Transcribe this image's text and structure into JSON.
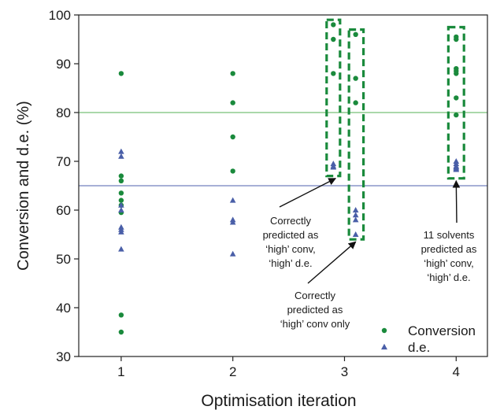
{
  "chart_data": {
    "type": "scatter",
    "xlabel": "Optimisation iteration",
    "ylabel": "Conversion and d.e. (%)",
    "xticks": [
      "1",
      "2",
      "3",
      "4"
    ],
    "yticks": [
      "30",
      "40",
      "50",
      "60",
      "70",
      "80",
      "90",
      "100"
    ],
    "xlim": [
      0.62,
      4.28
    ],
    "ylim": [
      30,
      100
    ],
    "grid": false,
    "legend_position": "bottom-right",
    "thresholds": [
      {
        "y": 80,
        "color": "#8ecc8e"
      },
      {
        "y": 65,
        "color": "#8a95c8"
      }
    ],
    "series": [
      {
        "name": "Conversion",
        "marker": "circle",
        "color": "#1a8a3c",
        "points": [
          [
            1,
            88
          ],
          [
            1,
            67
          ],
          [
            1,
            66
          ],
          [
            1,
            63.5
          ],
          [
            1,
            62
          ],
          [
            1,
            61
          ],
          [
            1,
            59.5
          ],
          [
            1,
            38.5
          ],
          [
            1,
            35
          ],
          [
            2,
            88
          ],
          [
            2,
            82
          ],
          [
            2,
            75
          ],
          [
            2,
            68
          ],
          [
            2.9,
            98
          ],
          [
            2.9,
            95
          ],
          [
            2.9,
            88
          ],
          [
            3.1,
            96
          ],
          [
            3.1,
            87
          ],
          [
            3.1,
            82
          ],
          [
            4,
            95.5
          ],
          [
            4,
            95
          ],
          [
            4,
            89
          ],
          [
            4,
            88.5
          ],
          [
            4,
            88
          ],
          [
            4,
            83
          ],
          [
            4,
            79.5
          ]
        ]
      },
      {
        "name": "d.e.",
        "marker": "triangle",
        "color": "#4a5fa8",
        "points": [
          [
            1,
            72
          ],
          [
            1,
            71
          ],
          [
            1,
            61
          ],
          [
            1,
            60
          ],
          [
            1,
            56.5
          ],
          [
            1,
            56
          ],
          [
            1,
            55.5
          ],
          [
            1,
            52
          ],
          [
            2,
            62
          ],
          [
            2,
            58
          ],
          [
            2,
            57.5
          ],
          [
            2,
            51
          ],
          [
            2.9,
            69.5
          ],
          [
            2.9,
            69
          ],
          [
            2.9,
            68.8
          ],
          [
            3.1,
            60
          ],
          [
            3.1,
            59
          ],
          [
            3.1,
            58
          ],
          [
            3.1,
            55
          ],
          [
            4,
            70
          ],
          [
            4,
            69.5
          ],
          [
            4,
            69
          ],
          [
            4,
            68.8
          ],
          [
            4,
            68.5
          ],
          [
            4,
            68.3
          ]
        ]
      }
    ],
    "highlight_boxes": [
      {
        "x": [
          2.84,
          2.96
        ],
        "y": [
          67,
          99
        ]
      },
      {
        "x": [
          3.04,
          3.17
        ],
        "y": [
          54,
          97
        ]
      },
      {
        "x": [
          3.93,
          4.07
        ],
        "y": [
          66.5,
          97.5
        ]
      }
    ],
    "annotations": [
      {
        "lines": [
          "Correctly",
          "predicted as",
          "‘high’ conv,",
          "‘high’ d.e."
        ],
        "arrow_to": [
          2.92,
          66.5
        ]
      },
      {
        "lines": [
          "Correctly",
          "predicted as",
          "‘high’ conv only"
        ],
        "arrow_to": [
          3.1,
          53.5
        ]
      },
      {
        "lines": [
          "11 solvents",
          "predicted as",
          "‘high’ conv,",
          "‘high’ d.e."
        ],
        "arrow_to": [
          4.0,
          66
        ]
      }
    ]
  }
}
